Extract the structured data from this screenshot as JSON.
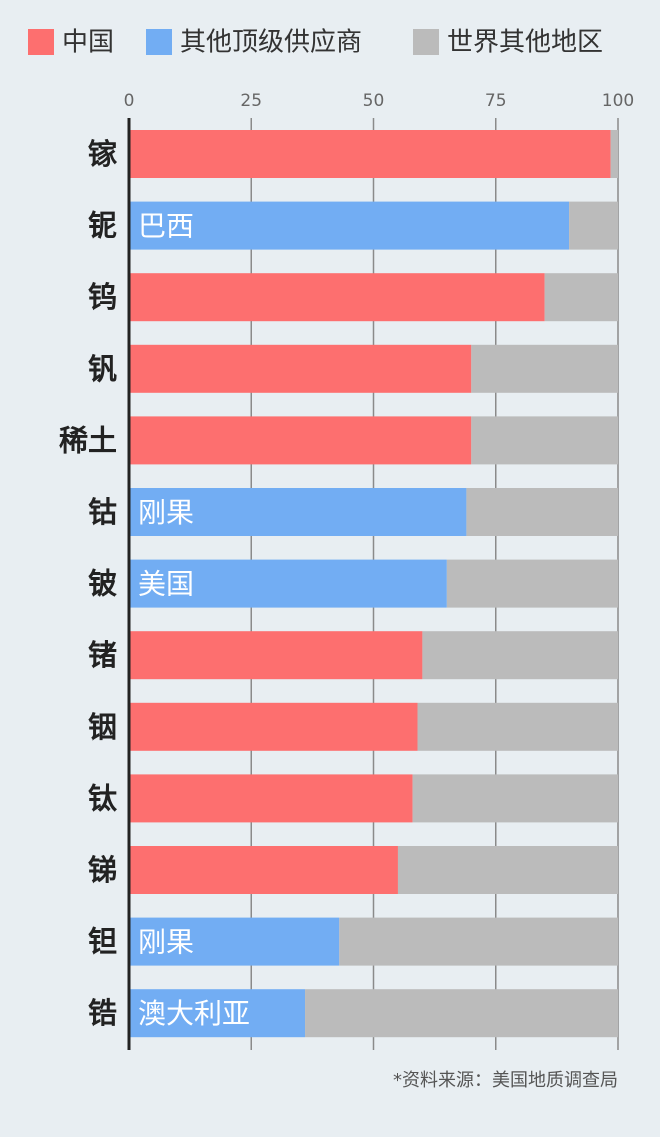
{
  "chart_data": {
    "type": "stacked-barh",
    "categories": [
      "镓",
      "铌",
      "钨",
      "钒",
      "稀土",
      "钴",
      "铍",
      "锗",
      "铟",
      "钛",
      "锑",
      "钽",
      "锆"
    ],
    "series": [
      {
        "name": "中国",
        "color": "#fd6f6f",
        "values": [
          98.5,
          null,
          85,
          70,
          70,
          null,
          null,
          60,
          59,
          58,
          55,
          null,
          null
        ]
      },
      {
        "name": "其他顶级供应商",
        "color": "#72adf3",
        "values": [
          null,
          90,
          null,
          null,
          null,
          69,
          65,
          null,
          null,
          null,
          null,
          43,
          36
        ],
        "value_labels": [
          null,
          "巴西",
          null,
          null,
          null,
          "刚果",
          "美国",
          null,
          null,
          null,
          null,
          "刚果",
          "澳大利亚"
        ]
      },
      {
        "name": "世界其他地区",
        "color": "#bbbbbb",
        "values": [
          1.5,
          10,
          15,
          30,
          30,
          31,
          35,
          40,
          41,
          42,
          45,
          57,
          64
        ]
      }
    ],
    "xlim": [
      0,
      100
    ],
    "xticks": [
      0,
      25,
      50,
      75,
      100
    ],
    "grid": true,
    "source": "*资料来源：美国地质调查局"
  }
}
